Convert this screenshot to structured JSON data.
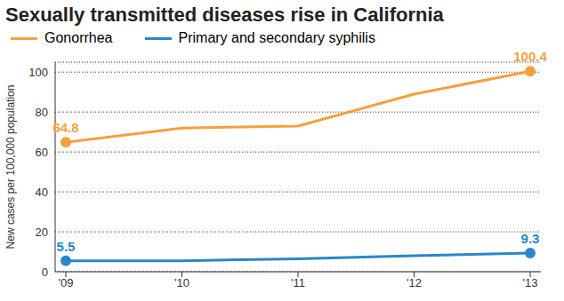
{
  "chart_data": {
    "type": "line",
    "title": "Sexually transmitted diseases rise in California",
    "categories": [
      "'09",
      "'10",
      "'11",
      "'12",
      "'13"
    ],
    "series": [
      {
        "name": "Gonorrhea",
        "color": "#f5a03c",
        "values": [
          64.8,
          72,
          73,
          89,
          100.4
        ],
        "value_labels": [
          "64.8",
          null,
          null,
          null,
          "100.4"
        ]
      },
      {
        "name": "Primary and secondary syphilis",
        "color": "#2a86c8",
        "values": [
          5.5,
          5.5,
          6.5,
          8,
          9.3
        ],
        "value_labels": [
          "5.5",
          null,
          null,
          null,
          "9.3"
        ]
      }
    ],
    "y_label": "New cases per 100,000 population",
    "ylim": [
      0,
      105
    ],
    "yticks": [
      0,
      20,
      40,
      60,
      80,
      100
    ],
    "grid": true,
    "legend": "top"
  }
}
